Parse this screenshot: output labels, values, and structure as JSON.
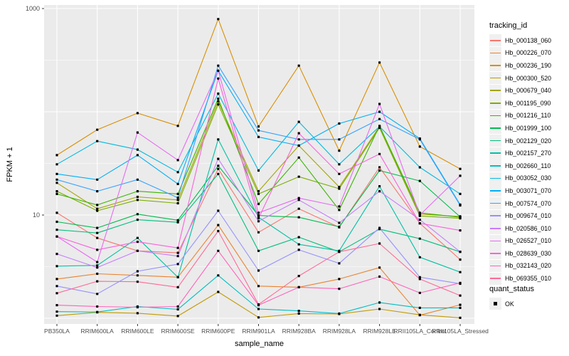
{
  "chart_data": {
    "type": "line",
    "title": "",
    "xlabel": "sample_name",
    "ylabel": "FPKM + 1",
    "yscale": "log10",
    "ylim": [
      0.88,
      1080
    ],
    "y_tick_labels": [
      "1000",
      "10"
    ],
    "y_tick_values": [
      1000,
      10
    ],
    "y_major_grid": [
      1,
      10,
      100,
      1000
    ],
    "y_minor_grid": [
      3.162,
      31.62,
      316.2
    ],
    "grid": true,
    "legend_position": "right",
    "legend_title": "tracking_id",
    "quant_legend": {
      "title": "quant_status",
      "items": [
        "OK"
      ]
    },
    "panel_bg": "#EBEBEB",
    "grid_color": "#FFFFFF",
    "point_color": "#000000",
    "tick_label_color": "#4D4D4D",
    "categories": [
      "PB350LA",
      "RRIM600LA",
      "RRIM600LE",
      "RRIM600SE",
      "RRIM600PE",
      "RRIM901LA",
      "RRIM928BA",
      "RRIM928LA",
      "RRIM928LE",
      "RRII105LA_Control",
      "RRII105LA_Stressed"
    ],
    "series": [
      {
        "name": "Hb_000138_060",
        "color": "#F8766D",
        "values": [
          10.5,
          6.0,
          4.5,
          4.3,
          28,
          6.8,
          11.5,
          7.6,
          29,
          8.3,
          3.7
        ]
      },
      {
        "name": "Hb_000226_070",
        "color": "#EA8331",
        "values": [
          2.4,
          2.7,
          2.6,
          2.5,
          8.0,
          2.05,
          2.0,
          2.4,
          3.1,
          1.07,
          1.35
        ]
      },
      {
        "name": "Hb_000236_190",
        "color": "#D89000",
        "values": [
          38,
          67,
          97,
          73,
          790,
          72,
          280,
          42,
          300,
          46,
          28
        ]
      },
      {
        "name": "Hb_000300_520",
        "color": "#C09B00",
        "values": [
          1.06,
          1.14,
          1.12,
          1.05,
          1.8,
          1.02,
          1.11,
          1.1,
          1.23,
          1.08,
          1.01
        ]
      },
      {
        "name": "Hb_000679_040",
        "color": "#A3A500",
        "values": [
          20.5,
          11.5,
          15,
          14,
          126,
          17,
          47,
          18.7,
          72,
          10.2,
          9.7
        ]
      },
      {
        "name": "Hb_001195_090",
        "color": "#7CAE00",
        "values": [
          17,
          11,
          14,
          13,
          118,
          16,
          23.5,
          18,
          70,
          9.8,
          9.3
        ]
      },
      {
        "name": "Hb_001216_110",
        "color": "#39B600",
        "values": [
          16,
          12.5,
          17,
          16,
          134,
          12.8,
          36,
          11.2,
          73,
          10.5,
          9.5
        ]
      },
      {
        "name": "Hb_001999_100",
        "color": "#00BB4E",
        "values": [
          8.6,
          7.5,
          10.2,
          8.9,
          30,
          9.9,
          9.5,
          7.7,
          27,
          21.4,
          9.6
        ]
      },
      {
        "name": "Hb_002129_020",
        "color": "#00BF7D",
        "values": [
          7.2,
          6.7,
          9.0,
          8.5,
          25,
          4.5,
          6.1,
          4.4,
          7.3,
          5.9,
          4.4
        ]
      },
      {
        "name": "Hb_002157_270",
        "color": "#00C1A3",
        "values": [
          3.2,
          3.25,
          6.0,
          2.5,
          54,
          9.5,
          5.2,
          4.5,
          19,
          3.9,
          2.8
        ]
      },
      {
        "name": "Hb_002660_110",
        "color": "#00BFC4",
        "values": [
          1.16,
          1.15,
          1.3,
          1.22,
          2.6,
          1.23,
          1.18,
          1.11,
          1.42,
          1.26,
          1.26
        ]
      },
      {
        "name": "Hb_003052_030",
        "color": "#00BAE0",
        "values": [
          31,
          52,
          43,
          26,
          150,
          27,
          80,
          31,
          72,
          29,
          16
        ]
      },
      {
        "name": "Hb_003071_070",
        "color": "#00B0F6",
        "values": [
          25,
          22,
          38,
          20,
          250,
          57,
          47,
          77,
          100,
          55,
          12.6
        ]
      },
      {
        "name": "Hb_007574_070",
        "color": "#35A2FF",
        "values": [
          22,
          17,
          22,
          14.7,
          280,
          66,
          54,
          54,
          85,
          54,
          12.4
        ]
      },
      {
        "name": "Hb_009674_010",
        "color": "#9590FF",
        "values": [
          2.05,
          1.72,
          2.85,
          3.35,
          11,
          2.9,
          4.6,
          3.4,
          7.5,
          2.5,
          2.16
        ]
      },
      {
        "name": "Hb_020586_010",
        "color": "#C77CFF",
        "values": [
          4.2,
          3.1,
          4.5,
          4.0,
          35,
          8.7,
          14,
          8.4,
          17,
          9.0,
          4.4
        ]
      },
      {
        "name": "Hb_026527_010",
        "color": "#E76BF3",
        "values": [
          6.2,
          3.5,
          63,
          34,
          250,
          10.5,
          14.6,
          12.1,
          119,
          10.0,
          24
        ]
      },
      {
        "name": "Hb_028639_030",
        "color": "#FA62DB",
        "values": [
          6.2,
          4.6,
          5.5,
          4.8,
          210,
          9.3,
          62,
          25,
          39,
          8.3,
          7.1
        ]
      },
      {
        "name": "Hb_032143_020",
        "color": "#FF62BC",
        "values": [
          1.34,
          1.3,
          1.28,
          1.3,
          4.5,
          1.34,
          2.0,
          1.93,
          2.53,
          1.76,
          2.2
        ]
      },
      {
        "name": "Hb_069355_010",
        "color": "#FF6A98",
        "values": [
          1.75,
          2.28,
          2.26,
          2.0,
          7.0,
          1.36,
          2.57,
          4.4,
          5.3,
          2.4,
          1.66
        ]
      }
    ]
  }
}
